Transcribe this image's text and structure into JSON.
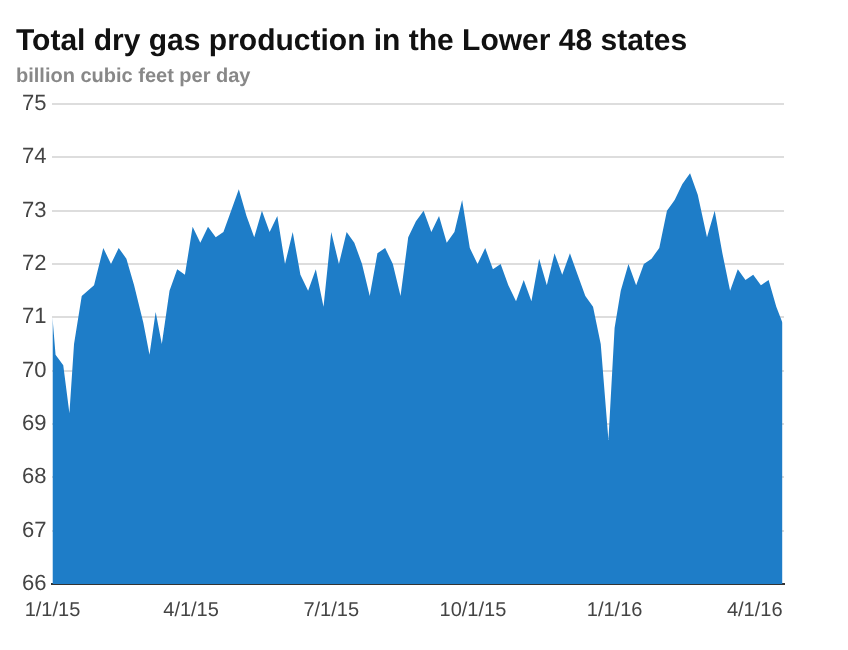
{
  "chart_data": {
    "type": "area",
    "title": "Total dry gas production in the Lower 48 states",
    "subtitle": "billion cubic feet per day",
    "x": [
      "2015-01-01",
      "2015-01-03",
      "2015-01-08",
      "2015-01-12",
      "2015-01-15",
      "2015-01-20",
      "2015-01-28",
      "2015-02-03",
      "2015-02-08",
      "2015-02-13",
      "2015-02-18",
      "2015-02-23",
      "2015-03-01",
      "2015-03-05",
      "2015-03-09",
      "2015-03-13",
      "2015-03-18",
      "2015-03-23",
      "2015-03-28",
      "2015-04-02",
      "2015-04-07",
      "2015-04-12",
      "2015-04-17",
      "2015-04-22",
      "2015-04-27",
      "2015-05-02",
      "2015-05-07",
      "2015-05-12",
      "2015-05-17",
      "2015-05-22",
      "2015-05-27",
      "2015-06-01",
      "2015-06-06",
      "2015-06-11",
      "2015-06-16",
      "2015-06-21",
      "2015-06-26",
      "2015-07-01",
      "2015-07-06",
      "2015-07-11",
      "2015-07-16",
      "2015-07-21",
      "2015-07-26",
      "2015-07-31",
      "2015-08-05",
      "2015-08-10",
      "2015-08-15",
      "2015-08-20",
      "2015-08-25",
      "2015-08-30",
      "2015-09-04",
      "2015-09-09",
      "2015-09-14",
      "2015-09-19",
      "2015-09-24",
      "2015-09-29",
      "2015-10-04",
      "2015-10-09",
      "2015-10-14",
      "2015-10-19",
      "2015-10-24",
      "2015-10-29",
      "2015-11-03",
      "2015-11-08",
      "2015-11-13",
      "2015-11-18",
      "2015-11-23",
      "2015-11-28",
      "2015-12-03",
      "2015-12-08",
      "2015-12-13",
      "2015-12-18",
      "2015-12-23",
      "2015-12-28",
      "2016-01-01",
      "2016-01-05",
      "2016-01-10",
      "2016-01-15",
      "2016-01-20",
      "2016-01-25",
      "2016-01-30",
      "2016-02-04",
      "2016-02-09",
      "2016-02-14",
      "2016-02-19",
      "2016-02-24",
      "2016-03-01",
      "2016-03-06",
      "2016-03-11",
      "2016-03-16",
      "2016-03-21",
      "2016-03-26",
      "2016-03-31",
      "2016-04-05",
      "2016-04-10",
      "2016-04-15",
      "2016-04-19"
    ],
    "series": [
      {
        "color": "#1e7dc8",
        "values": [
          71.0,
          70.3,
          70.1,
          69.2,
          70.5,
          71.4,
          71.6,
          72.3,
          72.0,
          72.3,
          72.1,
          71.6,
          70.9,
          70.3,
          71.1,
          70.5,
          71.5,
          71.9,
          71.8,
          72.7,
          72.4,
          72.7,
          72.5,
          72.6,
          73.0,
          73.4,
          72.9,
          72.5,
          73.0,
          72.6,
          72.9,
          72.0,
          72.6,
          71.8,
          71.5,
          71.9,
          71.2,
          72.6,
          72.0,
          72.6,
          72.4,
          72.0,
          71.4,
          72.2,
          72.3,
          72.0,
          71.4,
          72.5,
          72.8,
          73.0,
          72.6,
          72.9,
          72.4,
          72.6,
          73.2,
          72.3,
          72.0,
          72.3,
          71.9,
          72.0,
          71.6,
          71.3,
          71.7,
          71.3,
          72.1,
          71.6,
          72.2,
          71.8,
          72.2,
          71.8,
          71.4,
          71.2,
          70.5,
          68.7,
          70.8,
          71.5,
          72.0,
          71.6,
          72.0,
          72.1,
          72.3,
          73.0,
          73.2,
          73.5,
          73.7,
          73.3,
          72.5,
          73.0,
          72.2,
          71.5,
          71.9,
          71.7,
          71.8,
          71.6,
          71.7,
          71.2,
          70.9
        ]
      }
    ],
    "xlim": [
      "2015-01-01",
      "2016-04-20"
    ],
    "xticks": [
      {
        "value": "2015-01-01",
        "label": "1/1/15"
      },
      {
        "value": "2015-04-01",
        "label": "4/1/15"
      },
      {
        "value": "2015-07-01",
        "label": "7/1/15"
      },
      {
        "value": "2015-10-01",
        "label": "10/1/15"
      },
      {
        "value": "2016-01-01",
        "label": "1/1/16"
      },
      {
        "value": "2016-04-01",
        "label": "4/1/16"
      }
    ],
    "ylim": [
      66,
      75
    ],
    "yticks": [
      66,
      67,
      68,
      69,
      70,
      71,
      72,
      73,
      74,
      75
    ],
    "grid": "y",
    "legend": false
  }
}
